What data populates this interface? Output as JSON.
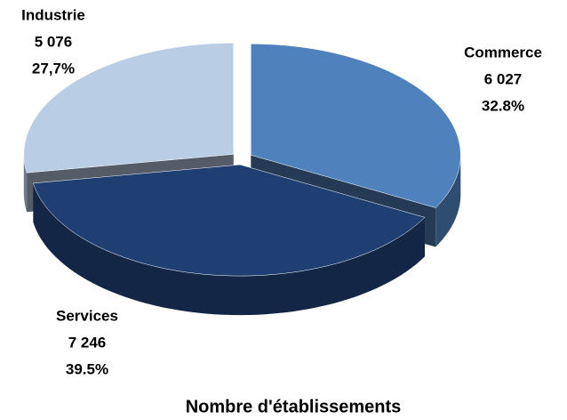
{
  "chart_data": {
    "type": "pie3d",
    "title": "Nombre d'établissements",
    "categories": [
      "Commerce",
      "Services",
      "Industrie"
    ],
    "values": [
      6027,
      7246,
      5076
    ],
    "value_labels": [
      "6 027",
      "7 246",
      "5 076"
    ],
    "percents": [
      32.8,
      39.5,
      27.7
    ],
    "percent_labels": [
      "32.8%",
      "39.5%",
      "27,7%"
    ],
    "colors": [
      "#4f81bd",
      "#1f3f73",
      "#b9cde5"
    ]
  }
}
